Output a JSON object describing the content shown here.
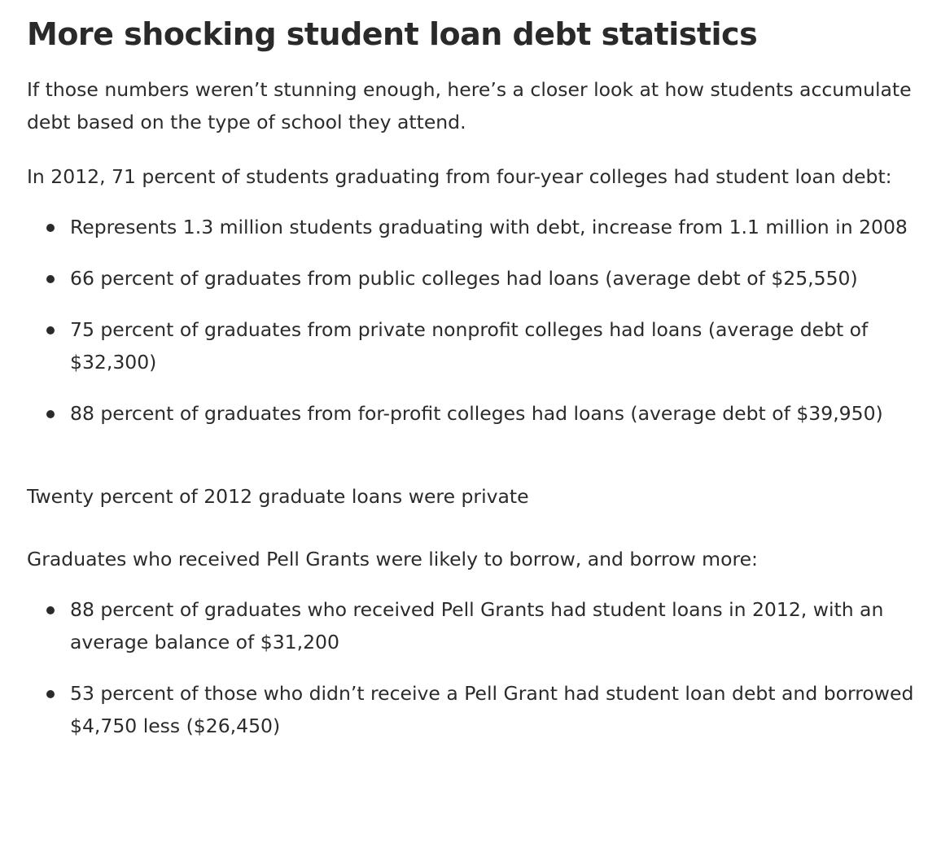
{
  "heading": "More shocking student loan debt statistics",
  "intro": "If those numbers weren’t stunning enough, here’s a closer look at how students accumulate debt based on the type of school they attend.",
  "section1": {
    "lead": "In 2012, 71 percent of students graduating from four-year colleges had student loan debt:",
    "items": [
      "Represents 1.3 million students graduating with debt, increase from 1.1 million in 2008",
      "66 percent of graduates from public colleges had loans (average debt of $25,550)",
      "75 percent of graduates from private nonprofit colleges had loans (average debt of $32,300)",
      "88 percent of graduates from for-profit colleges had loans (average debt of $39,950)"
    ]
  },
  "standalone": "Twenty percent of 2012 graduate loans were private",
  "section2": {
    "lead": "Graduates who received Pell Grants were likely to borrow, and borrow more:",
    "items": [
      "88 percent of graduates who received Pell Grants had student loans in 2012, with an average balance of $31,200",
      "53 percent of those who didn’t receive a Pell Grant had student loan debt and borrowed $4,750 less ($26,450)"
    ]
  }
}
